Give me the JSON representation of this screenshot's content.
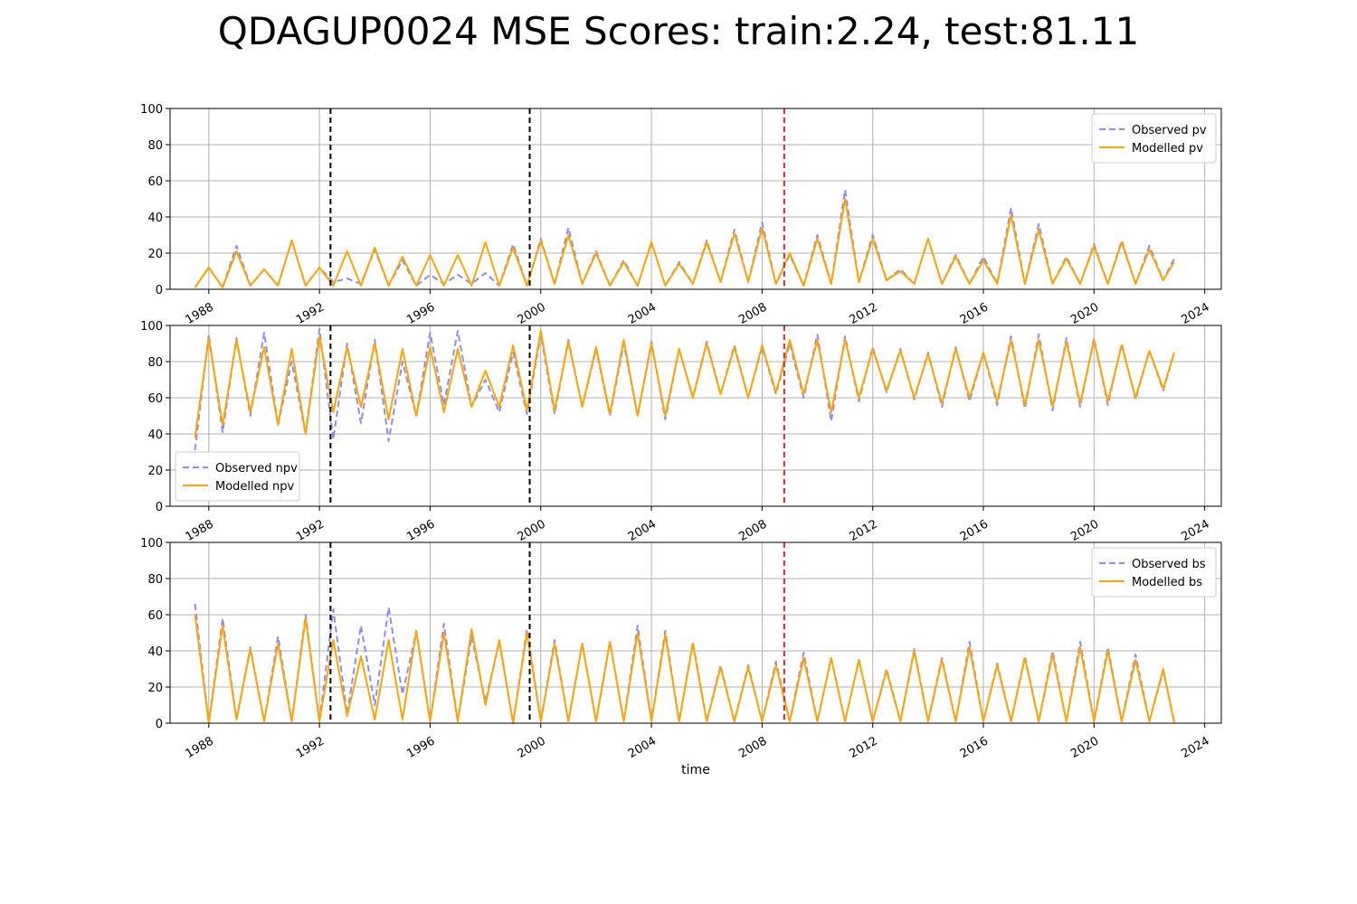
{
  "title": "QDAGUP0024 MSE Scores: train:2.24, test:81.11",
  "colors": {
    "observed": "#8c8cff",
    "modelled": "#ffa500",
    "split_black": "#000000",
    "split_red": "#d62728",
    "grid": "#b0b0b0"
  },
  "chart_data": [
    {
      "type": "line",
      "xlabel": "",
      "ylabel": "",
      "xlim": [
        1986.6,
        2024.6
      ],
      "ylim": [
        0,
        100
      ],
      "xticks": [
        1988,
        1992,
        1996,
        2000,
        2004,
        2008,
        2012,
        2016,
        2020,
        2024
      ],
      "yticks": [
        0,
        20,
        40,
        60,
        80,
        100
      ],
      "grid": true,
      "legend_position": "upper right",
      "vlines": [
        {
          "x": 1992.4,
          "color": "black"
        },
        {
          "x": 1999.6,
          "color": "black"
        },
        {
          "x": 2008.8,
          "color": "red"
        }
      ],
      "series": [
        {
          "name": "Observed pv",
          "style": "dashed",
          "x": [
            1987.5,
            1988.0,
            1988.5,
            1989.0,
            1989.5,
            1990.0,
            1990.5,
            1991.0,
            1991.5,
            1992.0,
            1992.5,
            1993.0,
            1993.5,
            1994.0,
            1994.5,
            1995.0,
            1995.5,
            1996.0,
            1996.5,
            1997.0,
            1997.5,
            1998.0,
            1998.5,
            1999.0,
            1999.5,
            2000.0,
            2000.5,
            2001.0,
            2001.5,
            2002.0,
            2002.5,
            2003.0,
            2003.5,
            2004.0,
            2004.5,
            2005.0,
            2005.5,
            2006.0,
            2006.5,
            2007.0,
            2007.5,
            2008.0,
            2008.5,
            2009.0,
            2009.5,
            2010.0,
            2010.5,
            2011.0,
            2011.5,
            2012.0,
            2012.5,
            2013.0,
            2013.5,
            2014.0,
            2014.5,
            2015.0,
            2015.5,
            2016.0,
            2016.5,
            2017.0,
            2017.5,
            2018.0,
            2018.5,
            2019.0,
            2019.5,
            2020.0,
            2020.5,
            2021.0,
            2021.5,
            2022.0,
            2022.5,
            2022.9
          ],
          "values": [
            1,
            12,
            1,
            24,
            2,
            11,
            2,
            27,
            2,
            12,
            4,
            6,
            3,
            22,
            2,
            16,
            2,
            8,
            3,
            8,
            3,
            9,
            2,
            25,
            2,
            28,
            3,
            34,
            3,
            21,
            2,
            16,
            2,
            26,
            2,
            15,
            3,
            27,
            4,
            33,
            4,
            37,
            3,
            19,
            2,
            30,
            3,
            55,
            4,
            30,
            5,
            11,
            3,
            28,
            3,
            19,
            3,
            18,
            3,
            45,
            3,
            36,
            3,
            18,
            3,
            25,
            3,
            27,
            3,
            24,
            5,
            17
          ]
        },
        {
          "name": "Modelled pv",
          "style": "solid",
          "x": [
            1987.5,
            1988.0,
            1988.5,
            1989.0,
            1989.5,
            1990.0,
            1990.5,
            1991.0,
            1991.5,
            1992.0,
            1992.5,
            1993.0,
            1993.5,
            1994.0,
            1994.5,
            1995.0,
            1995.5,
            1996.0,
            1996.5,
            1997.0,
            1997.5,
            1998.0,
            1998.5,
            1999.0,
            1999.5,
            2000.0,
            2000.5,
            2001.0,
            2001.5,
            2002.0,
            2002.5,
            2003.0,
            2003.5,
            2004.0,
            2004.5,
            2005.0,
            2005.5,
            2006.0,
            2006.5,
            2007.0,
            2007.5,
            2008.0,
            2008.5,
            2009.0,
            2009.5,
            2010.0,
            2010.5,
            2011.0,
            2011.5,
            2012.0,
            2012.5,
            2013.0,
            2013.5,
            2014.0,
            2014.5,
            2015.0,
            2015.5,
            2016.0,
            2016.5,
            2017.0,
            2017.5,
            2018.0,
            2018.5,
            2019.0,
            2019.5,
            2020.0,
            2020.5,
            2021.0,
            2021.5,
            2022.0,
            2022.5,
            2022.9
          ],
          "values": [
            1,
            12,
            1,
            21,
            2,
            11,
            2,
            27,
            2,
            12,
            2,
            21,
            2,
            23,
            2,
            18,
            2,
            19,
            2,
            19,
            2,
            26,
            2,
            23,
            2,
            27,
            3,
            30,
            3,
            20,
            2,
            15,
            2,
            26,
            2,
            14,
            3,
            26,
            4,
            31,
            4,
            34,
            3,
            20,
            2,
            28,
            3,
            50,
            4,
            28,
            5,
            10,
            3,
            28,
            3,
            18,
            3,
            16,
            3,
            41,
            3,
            33,
            3,
            17,
            3,
            24,
            3,
            26,
            3,
            22,
            5,
            15
          ]
        }
      ]
    },
    {
      "type": "line",
      "xlabel": "",
      "ylabel": "",
      "xlim": [
        1986.6,
        2024.6
      ],
      "ylim": [
        0,
        100
      ],
      "xticks": [
        1988,
        1992,
        1996,
        2000,
        2004,
        2008,
        2012,
        2016,
        2020,
        2024
      ],
      "yticks": [
        0,
        20,
        40,
        60,
        80,
        100
      ],
      "grid": true,
      "legend_position": "lower left",
      "vlines": [
        {
          "x": 1992.4,
          "color": "black"
        },
        {
          "x": 1999.6,
          "color": "black"
        },
        {
          "x": 2008.8,
          "color": "red"
        }
      ],
      "series": [
        {
          "name": "Observed npv",
          "style": "dashed",
          "x": [
            1987.5,
            1988.0,
            1988.5,
            1989.0,
            1989.5,
            1990.0,
            1990.5,
            1991.0,
            1991.5,
            1992.0,
            1992.5,
            1993.0,
            1993.5,
            1994.0,
            1994.5,
            1995.0,
            1995.5,
            1996.0,
            1996.5,
            1997.0,
            1997.5,
            1998.0,
            1998.5,
            1999.0,
            1999.5,
            2000.0,
            2000.5,
            2001.0,
            2001.5,
            2002.0,
            2002.5,
            2003.0,
            2003.5,
            2004.0,
            2004.5,
            2005.0,
            2005.5,
            2006.0,
            2006.5,
            2007.0,
            2007.5,
            2008.0,
            2008.5,
            2009.0,
            2009.5,
            2010.0,
            2010.5,
            2011.0,
            2011.5,
            2012.0,
            2012.5,
            2013.0,
            2013.5,
            2014.0,
            2014.5,
            2015.0,
            2015.5,
            2016.0,
            2016.5,
            2017.0,
            2017.5,
            2018.0,
            2018.5,
            2019.0,
            2019.5,
            2020.0,
            2020.5,
            2021.0,
            2021.5,
            2022.0,
            2022.5,
            2022.9
          ],
          "values": [
            31,
            95,
            41,
            93,
            50,
            96,
            45,
            80,
            40,
            98,
            37,
            90,
            46,
            92,
            36,
            80,
            50,
            96,
            56,
            97,
            55,
            70,
            52,
            85,
            51,
            95,
            51,
            92,
            55,
            87,
            50,
            90,
            50,
            91,
            48,
            87,
            60,
            91,
            62,
            89,
            60,
            88,
            62,
            90,
            60,
            95,
            47,
            94,
            58,
            88,
            63,
            87,
            59,
            85,
            55,
            88,
            58,
            85,
            56,
            94,
            54,
            95,
            53,
            93,
            55,
            93,
            56,
            90,
            59,
            86,
            64,
            85
          ]
        },
        {
          "name": "Modelled npv",
          "style": "solid",
          "x": [
            1987.5,
            1988.0,
            1988.5,
            1989.0,
            1989.5,
            1990.0,
            1990.5,
            1991.0,
            1991.5,
            1992.0,
            1992.5,
            1993.0,
            1993.5,
            1994.0,
            1994.5,
            1995.0,
            1995.5,
            1996.0,
            1996.5,
            1997.0,
            1997.5,
            1998.0,
            1998.5,
            1999.0,
            1999.5,
            2000.0,
            2000.5,
            2001.0,
            2001.5,
            2002.0,
            2002.5,
            2003.0,
            2003.5,
            2004.0,
            2004.5,
            2005.0,
            2005.5,
            2006.0,
            2006.5,
            2007.0,
            2007.5,
            2008.0,
            2008.5,
            2009.0,
            2009.5,
            2010.0,
            2010.5,
            2011.0,
            2011.5,
            2012.0,
            2012.5,
            2013.0,
            2013.5,
            2014.0,
            2014.5,
            2015.0,
            2015.5,
            2016.0,
            2016.5,
            2017.0,
            2017.5,
            2018.0,
            2018.5,
            2019.0,
            2019.5,
            2020.0,
            2020.5,
            2021.0,
            2021.5,
            2022.0,
            2022.5,
            2022.9
          ],
          "values": [
            38,
            93,
            45,
            92,
            52,
            88,
            45,
            87,
            40,
            94,
            52,
            88,
            55,
            90,
            48,
            87,
            50,
            88,
            52,
            87,
            55,
            75,
            55,
            89,
            53,
            97,
            53,
            91,
            55,
            88,
            51,
            92,
            50,
            90,
            50,
            87,
            60,
            90,
            62,
            88,
            60,
            89,
            63,
            92,
            62,
            92,
            52,
            92,
            60,
            87,
            64,
            86,
            60,
            84,
            57,
            87,
            60,
            85,
            58,
            92,
            56,
            92,
            55,
            91,
            57,
            92,
            58,
            89,
            60,
            86,
            65,
            85
          ]
        }
      ]
    },
    {
      "type": "line",
      "xlabel": "time",
      "ylabel": "",
      "xlim": [
        1986.6,
        2024.6
      ],
      "ylim": [
        0,
        100
      ],
      "xticks": [
        1988,
        1992,
        1996,
        2000,
        2004,
        2008,
        2012,
        2016,
        2020,
        2024
      ],
      "yticks": [
        0,
        20,
        40,
        60,
        80,
        100
      ],
      "grid": true,
      "legend_position": "upper right",
      "vlines": [
        {
          "x": 1992.4,
          "color": "black"
        },
        {
          "x": 1999.6,
          "color": "black"
        },
        {
          "x": 2008.8,
          "color": "red"
        }
      ],
      "series": [
        {
          "name": "Observed bs",
          "style": "dashed",
          "x": [
            1987.5,
            1988.0,
            1988.5,
            1989.0,
            1989.5,
            1990.0,
            1990.5,
            1991.0,
            1991.5,
            1992.0,
            1992.5,
            1993.0,
            1993.5,
            1994.0,
            1994.5,
            1995.0,
            1995.5,
            1996.0,
            1996.5,
            1997.0,
            1997.5,
            1998.0,
            1998.5,
            1999.0,
            1999.5,
            2000.0,
            2000.5,
            2001.0,
            2001.5,
            2002.0,
            2002.5,
            2003.0,
            2003.5,
            2004.0,
            2004.5,
            2005.0,
            2005.5,
            2006.0,
            2006.5,
            2007.0,
            2007.5,
            2008.0,
            2008.5,
            2009.0,
            2009.5,
            2010.0,
            2010.5,
            2011.0,
            2011.5,
            2012.0,
            2012.5,
            2013.0,
            2013.5,
            2014.0,
            2014.5,
            2015.0,
            2015.5,
            2016.0,
            2016.5,
            2017.0,
            2017.5,
            2018.0,
            2018.5,
            2019.0,
            2019.5,
            2020.0,
            2020.5,
            2021.0,
            2021.5,
            2022.0,
            2022.5,
            2022.9
          ],
          "values": [
            66,
            0,
            58,
            2,
            42,
            1,
            48,
            1,
            60,
            1,
            63,
            5,
            54,
            10,
            64,
            16,
            51,
            1,
            55,
            1,
            48,
            12,
            45,
            0,
            52,
            1,
            46,
            1,
            44,
            1,
            45,
            1,
            54,
            1,
            51,
            1,
            45,
            1,
            32,
            1,
            32,
            1,
            34,
            1,
            39,
            1,
            36,
            1,
            35,
            1,
            30,
            1,
            41,
            1,
            36,
            1,
            45,
            1,
            33,
            1,
            37,
            1,
            40,
            1,
            45,
            1,
            42,
            1,
            38,
            1,
            29,
            1
          ]
        },
        {
          "name": "Modelled bs",
          "style": "solid",
          "x": [
            1987.5,
            1988.0,
            1988.5,
            1989.0,
            1989.5,
            1990.0,
            1990.5,
            1991.0,
            1991.5,
            1992.0,
            1992.5,
            1993.0,
            1993.5,
            1994.0,
            1994.5,
            1995.0,
            1995.5,
            1996.0,
            1996.5,
            1997.0,
            1997.5,
            1998.0,
            1998.5,
            1999.0,
            1999.5,
            2000.0,
            2000.5,
            2001.0,
            2001.5,
            2002.0,
            2002.5,
            2003.0,
            2003.5,
            2004.0,
            2004.5,
            2005.0,
            2005.5,
            2006.0,
            2006.5,
            2007.0,
            2007.5,
            2008.0,
            2008.5,
            2009.0,
            2009.5,
            2010.0,
            2010.5,
            2011.0,
            2011.5,
            2012.0,
            2012.5,
            2013.0,
            2013.5,
            2014.0,
            2014.5,
            2015.0,
            2015.5,
            2016.0,
            2016.5,
            2017.0,
            2017.5,
            2018.0,
            2018.5,
            2019.0,
            2019.5,
            2020.0,
            2020.5,
            2021.0,
            2021.5,
            2022.0,
            2022.5,
            2022.9
          ],
          "values": [
            60,
            0,
            54,
            2,
            41,
            1,
            44,
            1,
            58,
            1,
            46,
            4,
            37,
            2,
            46,
            2,
            51,
            1,
            50,
            1,
            52,
            10,
            46,
            0,
            50,
            1,
            44,
            1,
            44,
            1,
            45,
            1,
            50,
            1,
            49,
            1,
            44,
            1,
            31,
            1,
            31,
            1,
            32,
            1,
            36,
            1,
            36,
            1,
            35,
            1,
            29,
            1,
            40,
            1,
            35,
            1,
            42,
            1,
            32,
            1,
            36,
            1,
            38,
            1,
            42,
            1,
            40,
            1,
            35,
            1,
            30,
            0
          ]
        }
      ]
    }
  ]
}
